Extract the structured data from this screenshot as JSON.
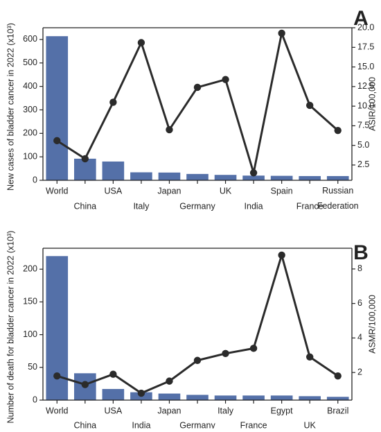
{
  "colors": {
    "bar": "#5470a8",
    "line": "#2b2b2b",
    "axis": "#222222"
  },
  "chart_data": [
    {
      "type": "bar",
      "panel_label": "A",
      "categories": [
        "World",
        "China",
        "USA",
        "Italy",
        "Japan",
        "Germany",
        "UK",
        "India",
        "Spain",
        "France",
        "Russian Federation"
      ],
      "category_lines": [
        [
          "World"
        ],
        [
          "China"
        ],
        [
          "USA"
        ],
        [
          "Italy"
        ],
        [
          "Japan"
        ],
        [
          "Germany"
        ],
        [
          "UK"
        ],
        [
          "India"
        ],
        [
          "Spain"
        ],
        [
          "France"
        ],
        [
          "Russian",
          "Federation"
        ]
      ],
      "series": [
        {
          "name": "New cases",
          "values": [
            614,
            92,
            80,
            34,
            33,
            27,
            23,
            20,
            19,
            18,
            18
          ],
          "axis": "left"
        },
        {
          "name": "ASIR",
          "values": [
            5.6,
            3.3,
            10.5,
            18.1,
            7.0,
            12.4,
            13.4,
            1.5,
            19.3,
            10.1,
            6.9
          ],
          "axis": "right",
          "kind": "line"
        }
      ],
      "ylabel": "New cases of bladder cancer in 2022 (x10³)",
      "y2label": "ASIR/100,000",
      "ylim": [
        0,
        650
      ],
      "y2lim": [
        0.55,
        20.0
      ],
      "yticks": [
        "0",
        "100",
        "200",
        "300",
        "400",
        "500",
        "600"
      ],
      "y2ticks": [
        "2.5",
        "5.0",
        "7.5",
        "10.0",
        "12.5",
        "15.0",
        "17.5",
        "20.0"
      ],
      "grid": false
    },
    {
      "type": "bar",
      "panel_label": "B",
      "categories": [
        "World",
        "China",
        "USA",
        "India",
        "Japan",
        "Germany",
        "Italy",
        "France",
        "Egypt",
        "UK",
        "Brazil"
      ],
      "category_lines": [
        [
          "World"
        ],
        [
          "China"
        ],
        [
          "USA"
        ],
        [
          "India"
        ],
        [
          "Japan"
        ],
        [
          "Germany"
        ],
        [
          "Italy"
        ],
        [
          "France"
        ],
        [
          "Egypt"
        ],
        [
          "UK"
        ],
        [
          "Brazil"
        ]
      ],
      "series": [
        {
          "name": "Deaths",
          "values": [
            220,
            41,
            17,
            12,
            10,
            8,
            7,
            7,
            7,
            6,
            5
          ],
          "axis": "left"
        },
        {
          "name": "ASMR",
          "values": [
            1.8,
            1.3,
            1.9,
            0.8,
            1.5,
            2.7,
            3.1,
            3.4,
            8.8,
            2.9,
            1.8
          ],
          "axis": "right",
          "kind": "line"
        }
      ],
      "ylabel": "Number of death for bladder cancer in 2022 (x10³)",
      "y2label": "ASMR/100,000",
      "ylim": [
        0,
        232
      ],
      "y2lim": [
        0.4,
        9.2
      ],
      "yticks": [
        "0",
        "50",
        "100",
        "150",
        "200"
      ],
      "y2ticks": [
        "2",
        "4",
        "6",
        "8"
      ],
      "grid": false
    }
  ]
}
